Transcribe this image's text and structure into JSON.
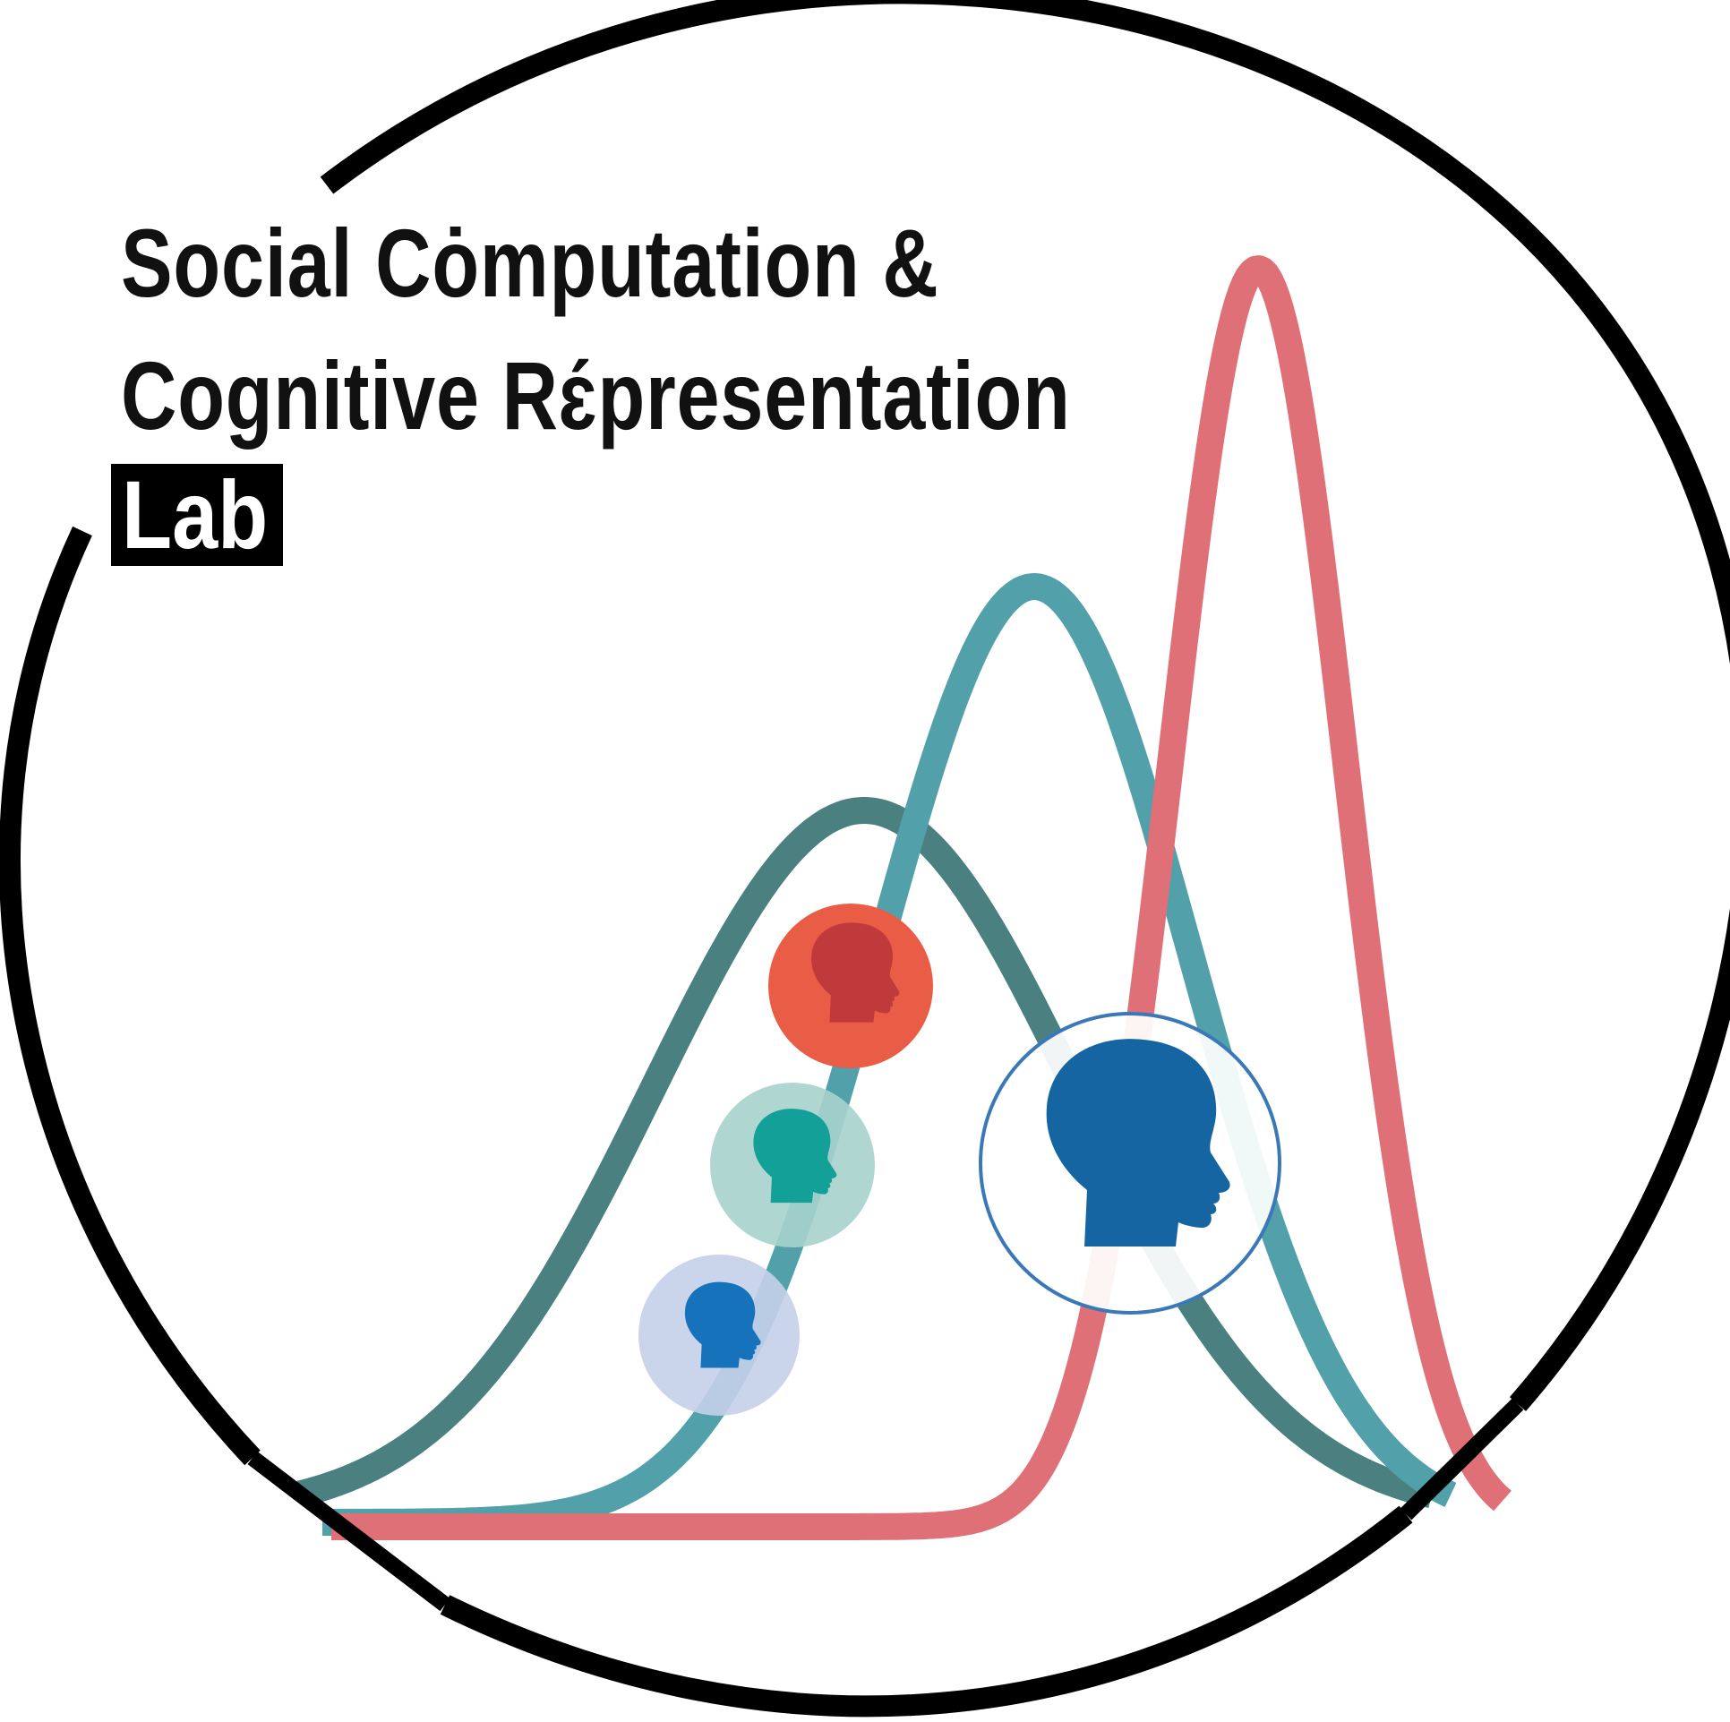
{
  "logo": {
    "title_line1": "Social Cȯmputation &",
    "title_line2": "Cognitive Rɛ́presentation",
    "badge": "Lab"
  },
  "curves": [
    {
      "name": "wide-distribution-curve",
      "color": "#4a8080"
    },
    {
      "name": "medium-distribution-curve",
      "color": "#52a1aa"
    },
    {
      "name": "narrow-distribution-curve",
      "color": "#e07078"
    }
  ],
  "heads": [
    {
      "name": "red-head-icon",
      "head_color": "#c0393b",
      "bubble_color": "#e95c45"
    },
    {
      "name": "teal-head-icon",
      "head_color": "#13a099",
      "bubble_color": "#a7d2cc"
    },
    {
      "name": "small-blue-head-icon",
      "head_color": "#1572bb",
      "bubble_color": "#c4d0ea"
    },
    {
      "name": "large-blue-head-icon",
      "head_color": "#1565a3",
      "bubble_color": "#ffffff",
      "ring_color": "#3a78b8"
    }
  ],
  "frame_color": "#000000"
}
